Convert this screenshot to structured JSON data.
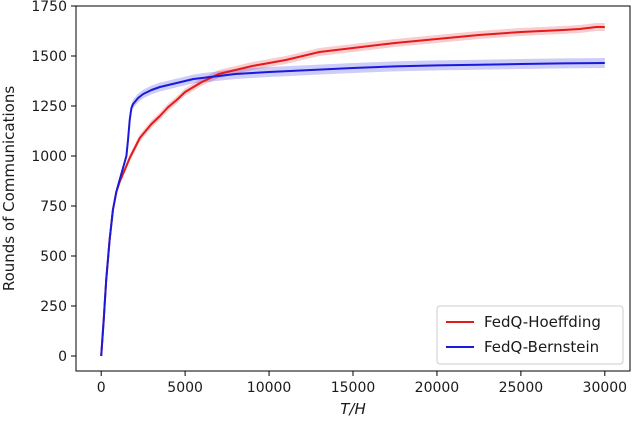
{
  "chart_data": {
    "type": "line",
    "title": "",
    "xlabel": "T/H",
    "ylabel": "Rounds of Communications",
    "xlim": [
      -1500,
      31500
    ],
    "ylim": [
      -75,
      1750
    ],
    "xticks": [
      0,
      5000,
      10000,
      15000,
      20000,
      25000,
      30000
    ],
    "yticks": [
      0,
      250,
      500,
      750,
      1000,
      1250,
      1500,
      1750
    ],
    "grid": false,
    "legend_position": "lower-right",
    "series": [
      {
        "name": "FedQ-Hoeffding",
        "color": "#e41a1c",
        "x": [
          0,
          150,
          300,
          500,
          700,
          900,
          1100,
          1300,
          1500,
          1700,
          2000,
          2300,
          2600,
          3000,
          3500,
          4000,
          4500,
          5000,
          5500,
          6000,
          7000,
          8000,
          9000,
          10000,
          11000,
          12000,
          13000,
          14000,
          15000,
          17500,
          20000,
          22500,
          25000,
          27500,
          28500,
          29500,
          30000
        ],
        "y": [
          0,
          180,
          380,
          580,
          730,
          820,
          870,
          910,
          950,
          990,
          1040,
          1090,
          1120,
          1160,
          1200,
          1245,
          1280,
          1320,
          1345,
          1370,
          1410,
          1430,
          1450,
          1465,
          1480,
          1500,
          1520,
          1530,
          1540,
          1565,
          1585,
          1605,
          1620,
          1630,
          1635,
          1645,
          1645
        ],
        "band": [
          0,
          5,
          8,
          10,
          12,
          14,
          15,
          16,
          17,
          18,
          18,
          18,
          18,
          18,
          18,
          18,
          18,
          18,
          18,
          18,
          20,
          20,
          20,
          20,
          20,
          20,
          20,
          20,
          20,
          20,
          20,
          20,
          20,
          20,
          20,
          20,
          20
        ]
      },
      {
        "name": "FedQ-Bernstein",
        "color": "#1a1adc",
        "x": [
          0,
          150,
          300,
          500,
          700,
          900,
          1100,
          1300,
          1500,
          1600,
          1700,
          1800,
          1900,
          2000,
          2200,
          2500,
          3000,
          3500,
          4000,
          4500,
          5000,
          5500,
          6000,
          7000,
          8000,
          9000,
          10000,
          12500,
          15000,
          17500,
          20000,
          22500,
          25000,
          27500,
          30000
        ],
        "y": [
          0,
          180,
          380,
          580,
          730,
          820,
          880,
          940,
          1000,
          1080,
          1180,
          1240,
          1260,
          1270,
          1290,
          1310,
          1330,
          1345,
          1355,
          1365,
          1375,
          1385,
          1390,
          1400,
          1410,
          1415,
          1420,
          1430,
          1440,
          1448,
          1453,
          1456,
          1460,
          1463,
          1465
        ],
        "band": [
          0,
          5,
          8,
          10,
          12,
          14,
          15,
          16,
          18,
          20,
          22,
          22,
          22,
          22,
          22,
          22,
          22,
          22,
          22,
          22,
          22,
          22,
          24,
          24,
          25,
          25,
          25,
          25,
          25,
          25,
          25,
          25,
          25,
          25,
          25
        ]
      }
    ]
  }
}
